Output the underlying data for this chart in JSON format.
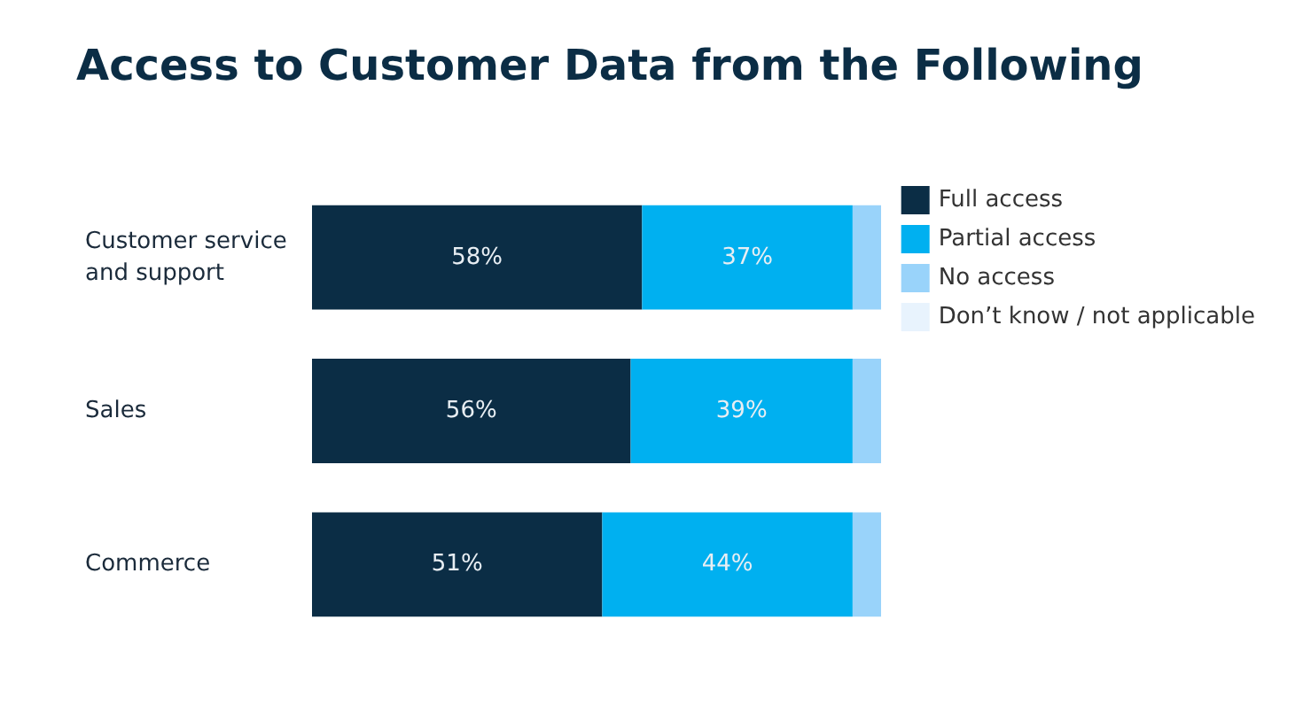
{
  "chart_data": {
    "type": "bar",
    "orientation": "horizontal",
    "stacked": true,
    "title": "Access to Customer Data from the Following",
    "categories": [
      "Customer service\nand support",
      "Sales",
      "Commerce"
    ],
    "legend": "top right",
    "series": [
      {
        "name": "Full access",
        "color": "#0b2d45",
        "values": [
          58,
          56,
          51
        ],
        "value_labels": [
          "58%",
          "56%",
          "51%"
        ]
      },
      {
        "name": "Partial access",
        "color": "#00b0f0",
        "values": [
          37,
          39,
          44
        ],
        "value_labels": [
          "37%",
          "39%",
          "44%"
        ]
      },
      {
        "name": "No access",
        "color": "#99d3fa",
        "values": [
          5,
          5,
          5
        ]
      },
      {
        "name": "Don’t know / not applicable",
        "color": "#e8f3fd",
        "values": [
          0,
          0,
          0
        ]
      }
    ]
  }
}
